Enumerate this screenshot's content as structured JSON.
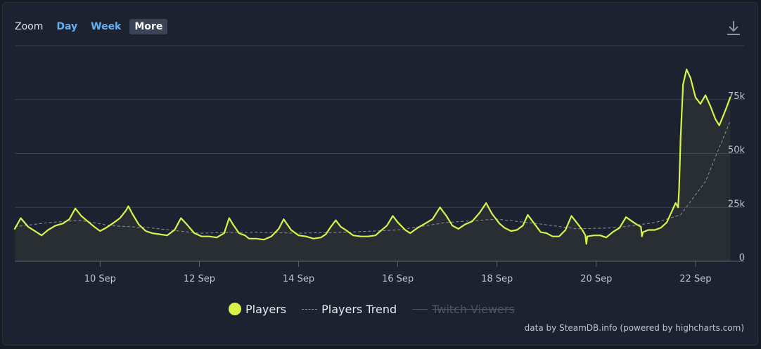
{
  "zoom": {
    "label": "Zoom",
    "buttons": [
      "Day",
      "Week",
      "More"
    ],
    "selected": "More"
  },
  "download_icon": "download-icon",
  "legend": {
    "players": "Players",
    "trend": "Players Trend",
    "twitch": "Twitch Viewers"
  },
  "credits": "data by SteamDB.info (powered by highcharts.com)",
  "colors": {
    "background": "#1d2230",
    "players": "#d8f347",
    "trend": "#8a92a0",
    "grid": "#3a4150"
  },
  "chart_data": {
    "type": "line",
    "x_unit": "days since 8 Sep",
    "xlim": [
      0.28,
      14.98
    ],
    "ylim": [
      0,
      100000
    ],
    "grid": true,
    "legend_position": "bottom",
    "x_ticks": [
      {
        "x": 2,
        "label": "10 Sep"
      },
      {
        "x": 4,
        "label": "12 Sep"
      },
      {
        "x": 6,
        "label": "14 Sep"
      },
      {
        "x": 8,
        "label": "16 Sep"
      },
      {
        "x": 10,
        "label": "18 Sep"
      },
      {
        "x": 12,
        "label": "20 Sep"
      },
      {
        "x": 14,
        "label": "22 Sep"
      }
    ],
    "y_ticks": [
      {
        "y": 0,
        "label": "0"
      },
      {
        "y": 25000,
        "label": "25k"
      },
      {
        "y": 50000,
        "label": "50k"
      },
      {
        "y": 75000,
        "label": "75k"
      }
    ],
    "series": [
      {
        "name": "Players",
        "points": [
          [
            0.28,
            15000
          ],
          [
            0.4,
            20000
          ],
          [
            0.55,
            16000
          ],
          [
            0.72,
            13500
          ],
          [
            0.82,
            12000
          ],
          [
            0.95,
            14500
          ],
          [
            1.1,
            16500
          ],
          [
            1.25,
            17500
          ],
          [
            1.38,
            19500
          ],
          [
            1.5,
            24500
          ],
          [
            1.62,
            21000
          ],
          [
            1.75,
            18500
          ],
          [
            1.88,
            16000
          ],
          [
            2.0,
            14000
          ],
          [
            2.12,
            15500
          ],
          [
            2.25,
            17500
          ],
          [
            2.4,
            20000
          ],
          [
            2.52,
            23500
          ],
          [
            2.57,
            25500
          ],
          [
            2.65,
            22000
          ],
          [
            2.78,
            17000
          ],
          [
            2.92,
            14000
          ],
          [
            3.05,
            13000
          ],
          [
            3.2,
            12500
          ],
          [
            3.35,
            12000
          ],
          [
            3.5,
            14500
          ],
          [
            3.63,
            20000
          ],
          [
            3.75,
            17000
          ],
          [
            3.9,
            13000
          ],
          [
            4.05,
            11500
          ],
          [
            4.2,
            11500
          ],
          [
            4.35,
            11000
          ],
          [
            4.5,
            13000
          ],
          [
            4.6,
            20000
          ],
          [
            4.68,
            17000
          ],
          [
            4.8,
            13000
          ],
          [
            4.92,
            12000
          ],
          [
            5.0,
            10500
          ],
          [
            5.15,
            10500
          ],
          [
            5.3,
            10000
          ],
          [
            5.45,
            11500
          ],
          [
            5.6,
            15000
          ],
          [
            5.7,
            19500
          ],
          [
            5.85,
            14500
          ],
          [
            6.0,
            12000
          ],
          [
            6.15,
            11500
          ],
          [
            6.3,
            10500
          ],
          [
            6.45,
            11000
          ],
          [
            6.55,
            12500
          ],
          [
            6.65,
            16000
          ],
          [
            6.75,
            19000
          ],
          [
            6.85,
            16000
          ],
          [
            6.95,
            14500
          ],
          [
            7.1,
            12000
          ],
          [
            7.25,
            11500
          ],
          [
            7.4,
            11500
          ],
          [
            7.55,
            12000
          ],
          [
            7.65,
            14000
          ],
          [
            7.78,
            16500
          ],
          [
            7.9,
            21000
          ],
          [
            8.0,
            18000
          ],
          [
            8.15,
            14500
          ],
          [
            8.25,
            13000
          ],
          [
            8.4,
            15500
          ],
          [
            8.55,
            17500
          ],
          [
            8.7,
            19500
          ],
          [
            8.85,
            25000
          ],
          [
            8.98,
            21000
          ],
          [
            9.1,
            16500
          ],
          [
            9.22,
            15000
          ],
          [
            9.35,
            17000
          ],
          [
            9.5,
            18500
          ],
          [
            9.65,
            22500
          ],
          [
            9.78,
            27000
          ],
          [
            9.9,
            22000
          ],
          [
            10.05,
            17500
          ],
          [
            10.15,
            15500
          ],
          [
            10.28,
            14000
          ],
          [
            10.4,
            14500
          ],
          [
            10.52,
            16500
          ],
          [
            10.62,
            21500
          ],
          [
            10.75,
            17500
          ],
          [
            10.88,
            13500
          ],
          [
            11.0,
            13000
          ],
          [
            11.12,
            11500
          ],
          [
            11.25,
            11500
          ],
          [
            11.38,
            14500
          ],
          [
            11.5,
            21000
          ],
          [
            11.62,
            17500
          ],
          [
            11.72,
            14500
          ],
          [
            11.78,
            12000
          ],
          [
            11.8,
            8000
          ],
          [
            11.82,
            11500
          ],
          [
            11.95,
            12000
          ],
          [
            12.08,
            12000
          ],
          [
            12.2,
            11000
          ],
          [
            12.33,
            13500
          ],
          [
            12.47,
            15500
          ],
          [
            12.6,
            20500
          ],
          [
            12.72,
            18500
          ],
          [
            12.82,
            17000
          ],
          [
            12.9,
            16000
          ],
          [
            12.92,
            11500
          ],
          [
            12.94,
            13500
          ],
          [
            13.05,
            14500
          ],
          [
            13.18,
            14500
          ],
          [
            13.3,
            15500
          ],
          [
            13.42,
            18000
          ],
          [
            13.52,
            23000
          ],
          [
            13.6,
            27000
          ],
          [
            13.65,
            25000
          ],
          [
            13.67,
            34000
          ],
          [
            13.7,
            57000
          ],
          [
            13.75,
            82000
          ],
          [
            13.82,
            89000
          ],
          [
            13.9,
            85000
          ],
          [
            14.0,
            76000
          ],
          [
            14.1,
            73000
          ],
          [
            14.2,
            77000
          ],
          [
            14.3,
            72000
          ],
          [
            14.4,
            66000
          ],
          [
            14.48,
            63000
          ],
          [
            14.55,
            67000
          ],
          [
            14.62,
            71000
          ],
          [
            14.7,
            76000
          ]
        ]
      },
      {
        "name": "Players Trend",
        "points": [
          [
            0.28,
            16000
          ],
          [
            1.0,
            18000
          ],
          [
            1.6,
            19000
          ],
          [
            2.2,
            16500
          ],
          [
            3.0,
            15500
          ],
          [
            4.0,
            13000
          ],
          [
            5.0,
            13500
          ],
          [
            6.0,
            13000
          ],
          [
            7.0,
            13500
          ],
          [
            8.0,
            14500
          ],
          [
            9.0,
            18000
          ],
          [
            10.0,
            19500
          ],
          [
            10.8,
            17500
          ],
          [
            11.6,
            15000
          ],
          [
            12.4,
            15500
          ],
          [
            13.2,
            18000
          ],
          [
            13.7,
            21500
          ],
          [
            14.2,
            37000
          ],
          [
            14.7,
            65000
          ]
        ]
      }
    ]
  }
}
